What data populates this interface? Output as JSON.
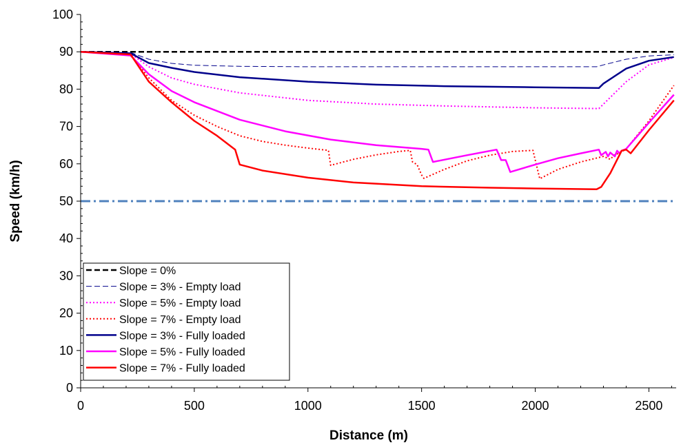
{
  "chart_data": {
    "type": "line",
    "title": "",
    "xlabel": "Distance (m)",
    "ylabel": "Speed (km/h)",
    "xlim": [
      0,
      2620
    ],
    "ylim": [
      0,
      100
    ],
    "xticks": [
      0,
      500,
      1000,
      1500,
      2000,
      2500
    ],
    "yticks": [
      0,
      10,
      20,
      30,
      40,
      50,
      60,
      70,
      80,
      90,
      100
    ],
    "grid": false,
    "legend_position": "bottom-left",
    "reference_line": {
      "y": 50,
      "color": "#4F81BD",
      "style": "dash-dot"
    },
    "series": [
      {
        "name": "Slope = 0%",
        "color": "#000000",
        "style": "dashed",
        "width": 2.5,
        "x": [
          0,
          2610
        ],
        "y": [
          90,
          90
        ]
      },
      {
        "name": "Slope = 3% - Empty load",
        "color": "#00008B",
        "style": "dashed",
        "width": 1,
        "x": [
          0,
          220,
          300,
          400,
          500,
          700,
          1000,
          1500,
          2000,
          2270,
          2300,
          2400,
          2500,
          2610
        ],
        "y": [
          90,
          89.8,
          88,
          86.9,
          86.4,
          86.1,
          86,
          86,
          86,
          86,
          86.5,
          88,
          88.9,
          89.2
        ]
      },
      {
        "name": "Slope = 5% - Empty load",
        "color": "#FF00FF",
        "style": "dotted",
        "width": 2,
        "x": [
          0,
          220,
          300,
          400,
          500,
          700,
          1000,
          1300,
          1600,
          2000,
          2280,
          2300,
          2400,
          2500,
          2610
        ],
        "y": [
          90,
          89.5,
          86,
          83,
          81.3,
          79,
          77,
          76,
          75.5,
          75,
          74.8,
          76,
          82,
          86.5,
          88.5
        ]
      },
      {
        "name": "Slope = 7% - Empty load",
        "color": "#FF0000",
        "style": "dotted",
        "width": 2,
        "x": [
          0,
          220,
          300,
          400,
          500,
          600,
          700,
          800,
          900,
          1000,
          1090,
          1100,
          1200,
          1300,
          1400,
          1450,
          1460,
          1480,
          1500,
          1510,
          1600,
          1700,
          1800,
          1900,
          1990,
          2020,
          2100,
          2200,
          2300,
          2330,
          2350,
          2370,
          2400,
          2500,
          2610
        ],
        "y": [
          90,
          89.3,
          83,
          77,
          73,
          70,
          67.5,
          66,
          65,
          64.2,
          63.6,
          59.6,
          61.2,
          62.4,
          63.3,
          63.6,
          60.5,
          59.8,
          57,
          56.1,
          58.5,
          60.8,
          62.3,
          63.3,
          63.6,
          56,
          58.5,
          60.5,
          62,
          61.2,
          62.5,
          62.8,
          64,
          71.5,
          81
        ]
      },
      {
        "name": "Slope = 3% - Fully loaded",
        "color": "#00008B",
        "style": "solid",
        "width": 2.5,
        "x": [
          0,
          220,
          300,
          400,
          500,
          700,
          1000,
          1300,
          1600,
          2000,
          2280,
          2300,
          2400,
          2500,
          2610
        ],
        "y": [
          90,
          89.6,
          87,
          85.7,
          84.6,
          83.2,
          82,
          81.2,
          80.8,
          80.5,
          80.3,
          81.5,
          85.5,
          87.6,
          88.6
        ]
      },
      {
        "name": "Slope = 5% - Fully loaded",
        "color": "#FF00FF",
        "style": "solid",
        "width": 2.5,
        "x": [
          0,
          220,
          300,
          400,
          500,
          700,
          900,
          1100,
          1300,
          1500,
          1530,
          1550,
          1700,
          1830,
          1850,
          1870,
          1890,
          2000,
          2100,
          2200,
          2280,
          2290,
          2310,
          2320,
          2330,
          2340,
          2350,
          2360,
          2370,
          2380,
          2400,
          2500,
          2610
        ],
        "y": [
          90,
          89,
          84,
          79.5,
          76.5,
          71.8,
          68.7,
          66.5,
          65,
          64,
          63.8,
          60.5,
          62.3,
          63.8,
          61,
          61,
          57.8,
          59.8,
          61.5,
          62.8,
          63.8,
          62.3,
          63.2,
          62,
          63,
          62.5,
          62,
          63.5,
          62.8,
          63.5,
          64,
          71,
          78.5
        ]
      },
      {
        "name": "Slope = 7% - Fully loaded",
        "color": "#FF0000",
        "style": "solid",
        "width": 2.5,
        "x": [
          0,
          220,
          300,
          400,
          500,
          600,
          680,
          700,
          800,
          1000,
          1200,
          1500,
          1800,
          2000,
          2270,
          2290,
          2330,
          2380,
          2400,
          2420,
          2500,
          2610
        ],
        "y": [
          90,
          89.3,
          82,
          76.5,
          71.5,
          67.5,
          63.8,
          59.8,
          58.2,
          56.3,
          55,
          54,
          53.6,
          53.4,
          53.2,
          53.8,
          57.5,
          63.5,
          63.8,
          62.8,
          69,
          77
        ]
      }
    ]
  }
}
